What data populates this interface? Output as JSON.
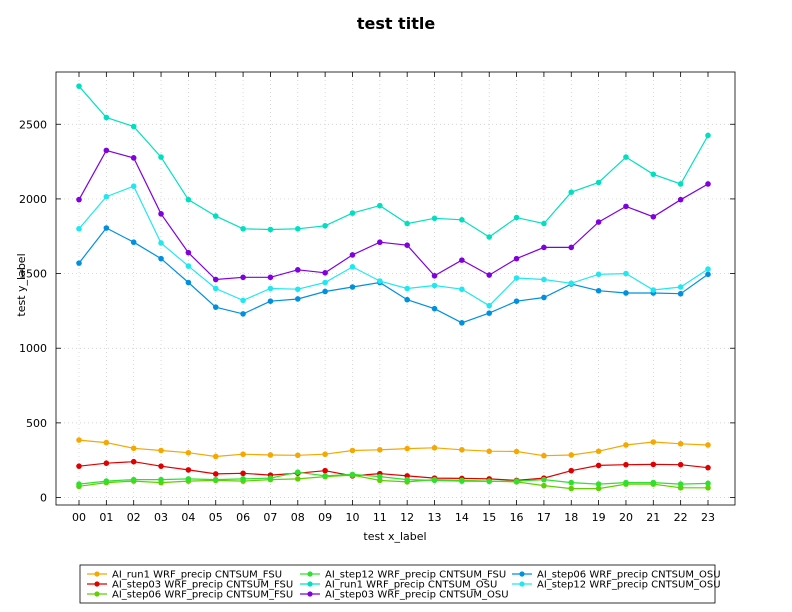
{
  "chart_data": {
    "type": "line",
    "title": "test title",
    "xlabel": "test x_label",
    "ylabel": "test y_label",
    "categories": [
      "00",
      "01",
      "02",
      "03",
      "04",
      "05",
      "06",
      "07",
      "08",
      "09",
      "10",
      "11",
      "12",
      "13",
      "14",
      "15",
      "16",
      "17",
      "18",
      "19",
      "20",
      "21",
      "22",
      "23"
    ],
    "ylim": [
      -50,
      2850
    ],
    "yticks": [
      0,
      500,
      1000,
      1500,
      2000,
      2500
    ],
    "grid": true,
    "legend_position": "bottom",
    "series": [
      {
        "name": "AI_run1 WRF_precip CNTSUM_FSU",
        "color": "#f5a800",
        "values": [
          385,
          368,
          330,
          315,
          300,
          275,
          290,
          285,
          283,
          290,
          315,
          320,
          328,
          333,
          320,
          310,
          308,
          280,
          285,
          310,
          352,
          372,
          360,
          352
        ]
      },
      {
        "name": "AI_step03 WRF_precip CNTSUM_FSU",
        "color": "#e00000",
        "values": [
          210,
          230,
          240,
          210,
          185,
          158,
          162,
          150,
          163,
          180,
          145,
          160,
          145,
          130,
          128,
          125,
          115,
          130,
          180,
          215,
          220,
          222,
          220,
          200
        ]
      },
      {
        "name": "AI_step06 WRF_precip CNTSUM_FSU",
        "color": "#60d000",
        "values": [
          75,
          100,
          110,
          100,
          110,
          115,
          110,
          120,
          125,
          140,
          150,
          115,
          105,
          120,
          115,
          110,
          105,
          80,
          60,
          60,
          90,
          90,
          65,
          65
        ]
      },
      {
        "name": "AI_step12 WRF_precip CNTSUM_FSU",
        "color": "#30e030",
        "values": [
          90,
          110,
          120,
          120,
          125,
          120,
          125,
          130,
          170,
          145,
          155,
          140,
          120,
          115,
          110,
          108,
          110,
          120,
          100,
          90,
          100,
          100,
          90,
          95
        ]
      },
      {
        "name": "AI_run1 WRF_precip CNTSUM_OSU",
        "color": "#00e0c0",
        "values": [
          2755,
          2545,
          2485,
          2280,
          1995,
          1885,
          1800,
          1795,
          1800,
          1820,
          1905,
          1955,
          1835,
          1870,
          1860,
          1745,
          1875,
          1835,
          2045,
          2110,
          2280,
          2165,
          2100,
          2425
        ]
      },
      {
        "name": "AI_step03 WRF_precip CNTSUM_OSU",
        "color": "#8000e0",
        "values": [
          1995,
          2325,
          2275,
          1900,
          1640,
          1460,
          1475,
          1475,
          1525,
          1505,
          1625,
          1710,
          1690,
          1485,
          1590,
          1490,
          1600,
          1675,
          1675,
          1845,
          1950,
          1880,
          1995,
          2100
        ]
      },
      {
        "name": "AI_step06 WRF_precip CNTSUM_OSU",
        "color": "#0090e0",
        "values": [
          1570,
          1805,
          1710,
          1600,
          1440,
          1275,
          1230,
          1315,
          1330,
          1380,
          1410,
          1440,
          1325,
          1265,
          1170,
          1235,
          1315,
          1340,
          1430,
          1385,
          1370,
          1370,
          1365,
          1495
        ]
      },
      {
        "name": "AI_step12 WRF_precip CNTSUM_OSU",
        "color": "#20e8f0",
        "values": [
          1800,
          2015,
          2085,
          1705,
          1550,
          1400,
          1320,
          1400,
          1395,
          1440,
          1545,
          1450,
          1400,
          1420,
          1395,
          1285,
          1470,
          1460,
          1435,
          1495,
          1500,
          1390,
          1410,
          1530
        ]
      }
    ]
  }
}
